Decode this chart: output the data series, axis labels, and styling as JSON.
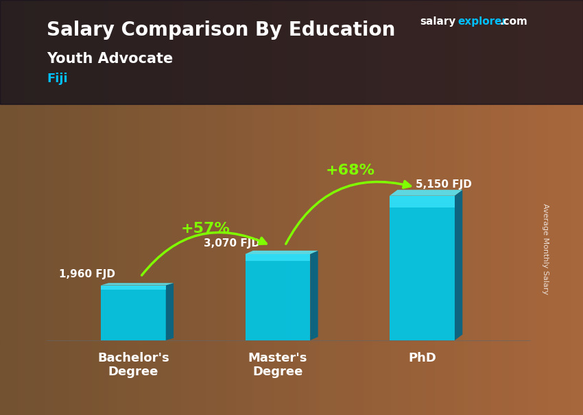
{
  "title_main": "Salary Comparison By Education",
  "subtitle1": "Youth Advocate",
  "subtitle2": "Fiji",
  "ylabel": "Average Monthly Salary",
  "categories": [
    "Bachelor's\nDegree",
    "Master's\nDegree",
    "PhD"
  ],
  "values": [
    1960,
    3070,
    5150
  ],
  "value_labels": [
    "1,960 FJD",
    "3,070 FJD",
    "5,150 FJD"
  ],
  "bar_color_top": "#00d4f0",
  "bar_color_mid": "#00aacc",
  "bar_color_bottom": "#0088aa",
  "bar_color_face": "#00c8e8",
  "pct_labels": [
    "+57%",
    "+68%"
  ],
  "pct_color": "#7fff00",
  "background_color": "#1a1a2e",
  "title_color": "#ffffff",
  "subtitle_color": "#ffffff",
  "fiji_color": "#00bfff",
  "brand_salary": "salary",
  "brand_explorer": "explorer",
  "brand_com": ".com",
  "ylim": [
    0,
    6500
  ]
}
